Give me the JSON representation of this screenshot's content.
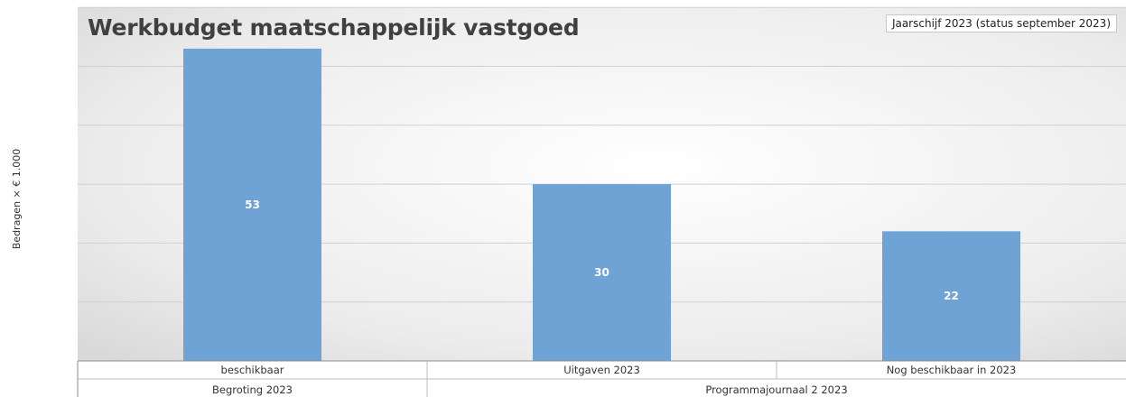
{
  "chart_data": {
    "type": "bar",
    "title": "Werkbudget maatschappelijk vastgoed",
    "subtitle": "Jaarschijf 2023 (status september 2023)",
    "ylabel": "Bedragen × € 1.000",
    "xlabel": "",
    "categories": [
      "beschikbaar",
      "Uitgaven 2023",
      "Nog beschikbaar in 2023"
    ],
    "groups": [
      {
        "label": "Begroting 2023",
        "categories": [
          "beschikbaar"
        ]
      },
      {
        "label": "Programmajournaal 2 2023",
        "categories": [
          "Uitgaven 2023",
          "Nog beschikbaar in 2023"
        ]
      }
    ],
    "values": [
      53,
      30,
      22
    ],
    "data_labels": [
      "53",
      "30",
      "22"
    ],
    "ylim": [
      0,
      60
    ],
    "y_gridline_step": 10,
    "y_tick_labels_visible": false,
    "grid": true,
    "legend": "none",
    "colors": {
      "bar": "#6fa3d6",
      "data_label": "#ffffff",
      "gridline": "#d0d0d0",
      "title": "#404040"
    }
  }
}
